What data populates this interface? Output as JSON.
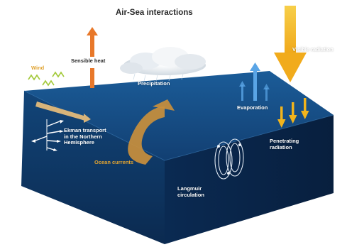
{
  "title": "Air-Sea interactions",
  "labels": {
    "wind": "Wind",
    "sensible_heat": "Sensible heat",
    "precipitation": "Precipitation",
    "visible_radiation": "Visible radiation",
    "evaporation": "Evaporation",
    "ekman_line1": "Ekman transport",
    "ekman_line2": "in the Northern",
    "ekman_line3": "Hemisphere",
    "ocean_currents": "Ocean currents",
    "penetrating_line1": "Penetrating",
    "penetrating_line2": "radiation",
    "langmuir_line1": "Langmuir",
    "langmuir_line2": "circulation"
  },
  "colors": {
    "ocean_top": "#15457a",
    "ocean_front": "#0f3663",
    "ocean_side": "#0a2a52",
    "sun_arrow": "#f2b41c",
    "heat_arrow": "#e8782a",
    "evap_arrow": "#5aa5e6",
    "current": "#c98f3c",
    "wind_squiggle": "#a3c93a"
  }
}
